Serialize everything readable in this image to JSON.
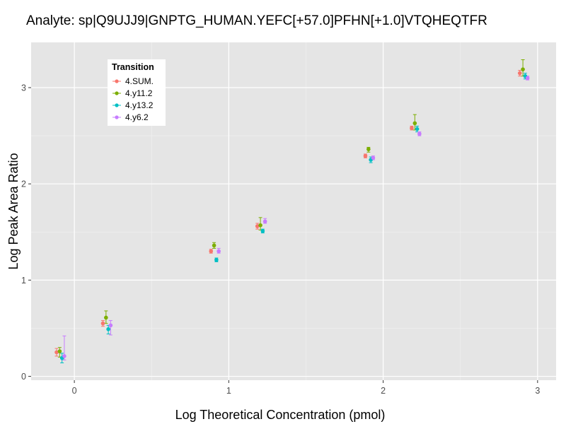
{
  "chart_data": {
    "type": "scatter",
    "title": "Analyte: sp|Q9UJJ9|GNPTG_HUMAN.YEFC[+57.0]PFHN[+1.0]VTQHEQTFR",
    "xlabel": "Log Theoretical Concentration (pmol)",
    "ylabel": "Log Peak Area Ratio",
    "xlim": [
      -0.28,
      3.12
    ],
    "ylim": [
      -0.04,
      3.47
    ],
    "xticks": [
      0,
      1,
      2,
      3
    ],
    "yticks": [
      0,
      1,
      2,
      3
    ],
    "grid": true,
    "legend": {
      "title": "Transition",
      "placement": "top-left"
    },
    "x": [
      -0.1,
      0.2,
      0.9,
      1.2,
      1.9,
      2.2,
      2.9
    ],
    "series": [
      {
        "name": "4.SUM.",
        "color": "#F8766D",
        "x_offset": -0.015,
        "y": [
          0.25,
          0.55,
          1.3,
          1.56,
          2.29,
          2.58,
          3.15
        ],
        "ylow": [
          0.21,
          0.52,
          1.28,
          1.53,
          2.27,
          2.56,
          3.12
        ],
        "yhigh": [
          0.29,
          0.58,
          1.32,
          1.59,
          2.31,
          2.6,
          3.18
        ]
      },
      {
        "name": "4.y11.2",
        "color": "#7CAE00",
        "x_offset": 0.005,
        "y": [
          0.26,
          0.61,
          1.36,
          1.57,
          2.36,
          2.63,
          3.19
        ],
        "ylow": [
          0.2,
          0.55,
          1.33,
          1.52,
          2.33,
          2.56,
          3.12
        ],
        "yhigh": [
          0.3,
          0.68,
          1.39,
          1.65,
          2.38,
          2.72,
          3.29
        ]
      },
      {
        "name": "4.y13.2",
        "color": "#00BFC4",
        "x_offset": 0.02,
        "y": [
          0.19,
          0.49,
          1.21,
          1.51,
          2.25,
          2.57,
          3.12
        ],
        "ylow": [
          0.14,
          0.44,
          1.19,
          1.49,
          2.22,
          2.54,
          3.09
        ],
        "yhigh": [
          0.24,
          0.53,
          1.23,
          1.53,
          2.28,
          2.6,
          3.15
        ]
      },
      {
        "name": "4.y6.2",
        "color": "#C77CFF",
        "x_offset": 0.035,
        "y": [
          0.21,
          0.53,
          1.3,
          1.61,
          2.27,
          2.52,
          3.1
        ],
        "ylow": [
          0.17,
          0.43,
          1.28,
          1.59,
          2.25,
          2.5,
          3.08
        ],
        "yhigh": [
          0.42,
          0.58,
          1.33,
          1.64,
          2.29,
          2.54,
          3.12
        ]
      }
    ]
  }
}
